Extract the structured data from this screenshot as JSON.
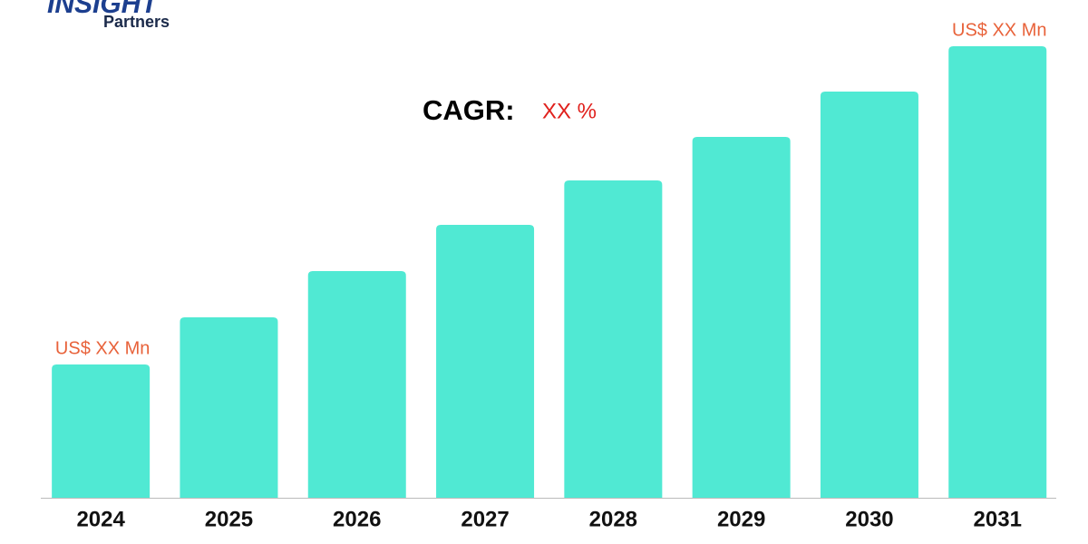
{
  "logo": {
    "brand": "INSIGHT",
    "sub": "Partners"
  },
  "chart_data": {
    "type": "bar",
    "categories": [
      "2024",
      "2025",
      "2026",
      "2027",
      "2028",
      "2029",
      "2030",
      "2031"
    ],
    "values": [
      147,
      199,
      250,
      301,
      350,
      398,
      448,
      498
    ],
    "value_labels": [
      "US$ XX Mn",
      null,
      null,
      null,
      null,
      null,
      null,
      "US$ XX Mn"
    ],
    "color": "#50e9d3",
    "label_color": "#e8623a",
    "cagr": {
      "label": "CAGR:",
      "value": "XX %",
      "color": "#e0201c"
    }
  }
}
